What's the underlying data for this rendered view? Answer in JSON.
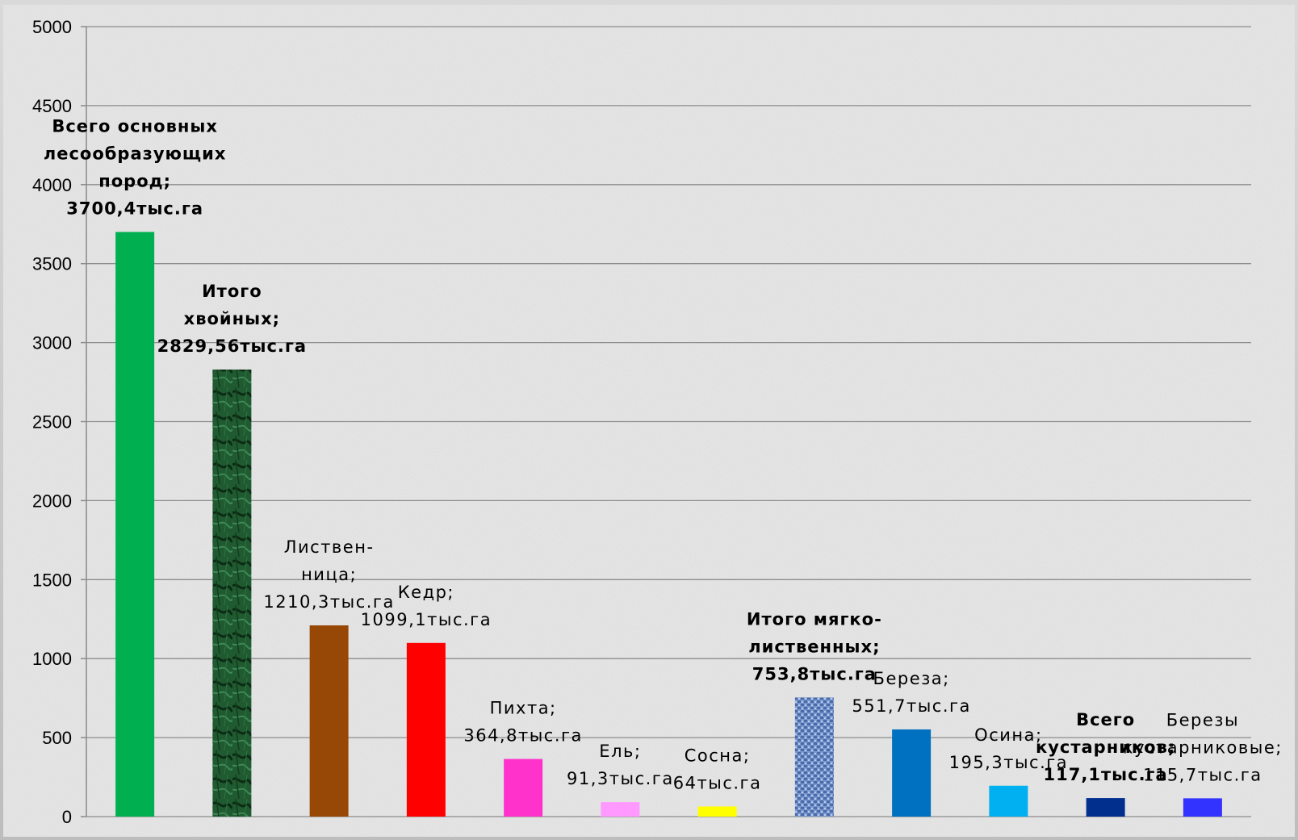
{
  "chart_data": {
    "type": "bar",
    "title": "",
    "xlabel": "",
    "ylabel": "",
    "ylim": [
      0,
      5000
    ],
    "yticks": [
      0,
      500,
      1000,
      1500,
      2000,
      2500,
      3000,
      3500,
      4000,
      4500,
      5000
    ],
    "grid": true,
    "legend": "none",
    "bars": [
      {
        "value": 3700.4,
        "color": "#00b050",
        "bold": true,
        "label": [
          "Всего основных",
          "лесообразующих",
          "пород;",
          "3700,4тыс.га"
        ]
      },
      {
        "value": 2829.56,
        "color": "#1e5b2e",
        "bold": true,
        "pattern": "marble",
        "label": [
          "Итого",
          "хвойных;",
          "2829,56тыс.га"
        ]
      },
      {
        "value": 1210.3,
        "color": "#974806",
        "bold": false,
        "label": [
          "Листвен-",
          "ница;",
          "1210,3тыс.га"
        ]
      },
      {
        "value": 1099.1,
        "color": "#ff0000",
        "bold": false,
        "label": [
          "Кедр;",
          "1099,1тыс.га"
        ]
      },
      {
        "value": 364.8,
        "color": "#ff33cc",
        "bold": false,
        "label": [
          "Пихта;",
          "364,8тыс.га"
        ]
      },
      {
        "value": 91.3,
        "color": "#ff99ff",
        "bold": false,
        "label": [
          "Ель;",
          "91,3тыс.га"
        ]
      },
      {
        "value": 64,
        "color": "#ffff00",
        "bold": false,
        "label": [
          "Сосна;",
          "64тыс.га"
        ]
      },
      {
        "value": 753.8,
        "color": "#6f8fc8",
        "bold": true,
        "pattern": "weave",
        "label": [
          "Итого мягко-",
          "лиственных;",
          "753,8тыс.га"
        ]
      },
      {
        "value": 551.7,
        "color": "#0070c0",
        "bold": false,
        "label": [
          "Береза;",
          "551,7тыс.га"
        ]
      },
      {
        "value": 195.3,
        "color": "#00b0f0",
        "bold": false,
        "label": [
          "Осина;",
          "195,3тыс.га"
        ]
      },
      {
        "value": 117.1,
        "color": "#002f8e",
        "bold": true,
        "label": [
          "Всего",
          "кустарников;",
          "117,1тыс.га"
        ]
      },
      {
        "value": 115.7,
        "color": "#3333ff",
        "bold": false,
        "label": [
          "Березы",
          "кустарниковые;",
          "115,7тыс.га"
        ]
      }
    ]
  }
}
